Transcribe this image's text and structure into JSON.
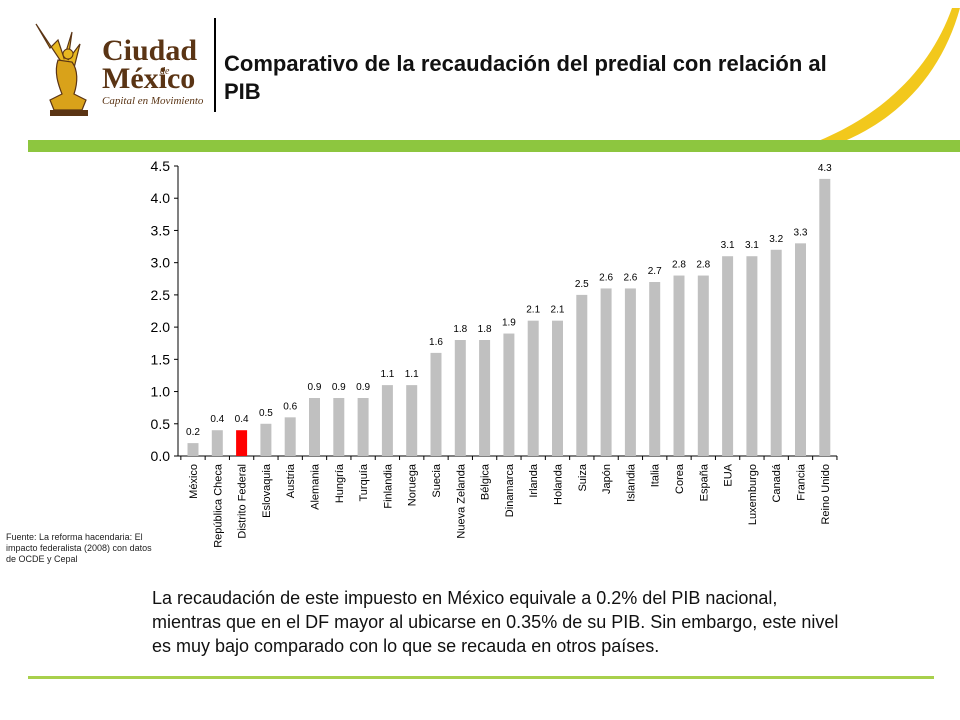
{
  "header": {
    "logo_text_line1": "Ciudad",
    "logo_text_de": "de",
    "logo_text_line2": "México",
    "logo_tagline": "Capital en Movimiento",
    "title": "Comparativo de la recaudación del predial con relación al PIB"
  },
  "colors": {
    "bar_default": "#c0c0c0",
    "bar_highlight": "#ff0000",
    "green_band": "#8dc63f",
    "logo_gold": "#e8b820",
    "logo_brown": "#5a3414"
  },
  "chart_data": {
    "type": "bar",
    "title": "",
    "xlabel": "",
    "ylabel": "",
    "ylim": [
      0,
      4.5
    ],
    "yticks": [
      "0.0",
      "0.5",
      "1.0",
      "1.5",
      "2.0",
      "2.5",
      "3.0",
      "3.5",
      "4.0",
      "4.5"
    ],
    "grid": false,
    "legend": "none",
    "categories": [
      "México",
      "República Checa",
      "Distrito Federal",
      "Eslovaquia",
      "Austria",
      "Alemania",
      "Hungría",
      "Turquía",
      "Finlandia",
      "Noruega",
      "Suecia",
      "Nueva Zelanda",
      "Bélgica",
      "Dinamarca",
      "Irlanda",
      "Holanda",
      "Suiza",
      "Japón",
      "Islandia",
      "Italia",
      "Corea",
      "España",
      "EUA",
      "Luxemburgo",
      "Canadá",
      "Francia",
      "Reino Unido"
    ],
    "values": [
      0.2,
      0.4,
      0.4,
      0.5,
      0.6,
      0.9,
      0.9,
      0.9,
      1.1,
      1.1,
      1.6,
      1.8,
      1.8,
      1.9,
      2.1,
      2.1,
      2.5,
      2.6,
      2.6,
      2.7,
      2.8,
      2.8,
      3.1,
      3.1,
      3.2,
      3.3,
      4.3
    ],
    "data_labels": [
      "0.2",
      "0.4",
      "0.4",
      "0.5",
      "0.6",
      "0.9",
      "0.9",
      "0.9",
      "1.1",
      "1.1",
      "1.6",
      "1.8",
      "1.8",
      "1.9",
      "2.1",
      "2.1",
      "2.5",
      "2.6",
      "2.6",
      "2.7",
      "2.8",
      "2.8",
      "3.1",
      "3.1",
      "3.2",
      "3.3",
      "4.3"
    ],
    "highlight_category": "Distrito Federal"
  },
  "source_note": "Fuente: La reforma hacendaria: El impacto federalista (2008) con datos de  OCDE y Cepal",
  "paragraph": {
    "line1": "La recaudación de este impuesto en México equivale a 0.2% del PIB nacional,",
    "line2": "mientras que en el DF mayor al ubicarse en 0.35% de su PIB. Sin embargo, este nivel",
    "line3": "es muy bajo comparado con lo que se recauda en otros países."
  }
}
